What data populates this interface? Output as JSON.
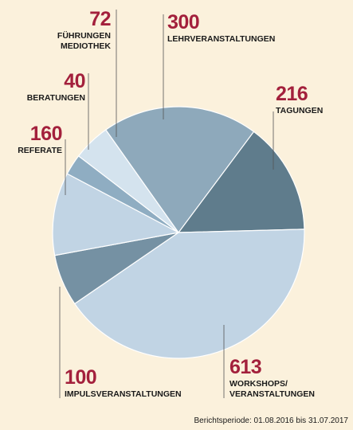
{
  "chart_data": {
    "type": "pie",
    "slices": [
      {
        "label": "TAGUNGEN",
        "value": 216,
        "color": "#5f7c8c"
      },
      {
        "label": "WORKSHOPS/\nVERANSTALTUNGEN",
        "value": 613,
        "color": "#c1d4e4"
      },
      {
        "label": "IMPULSVERANSTALTUNGEN",
        "value": 100,
        "color": "#7591a3"
      },
      {
        "label": "REFERATE",
        "value": 160,
        "color": "#c1d4e4"
      },
      {
        "label": "BERATUNGEN",
        "value": 40,
        "color": "#8fadc2"
      },
      {
        "label": "FÜHRUNGEN\nMEDIOTHEK",
        "value": 72,
        "color": "#d4e3ee"
      },
      {
        "label": "LEHRVERANSTALTUNGEN",
        "value": 300,
        "color": "#8ea9bb"
      }
    ],
    "footnote": "Berichtsperiode: 01.08.2016 bis 31.07.2017"
  }
}
